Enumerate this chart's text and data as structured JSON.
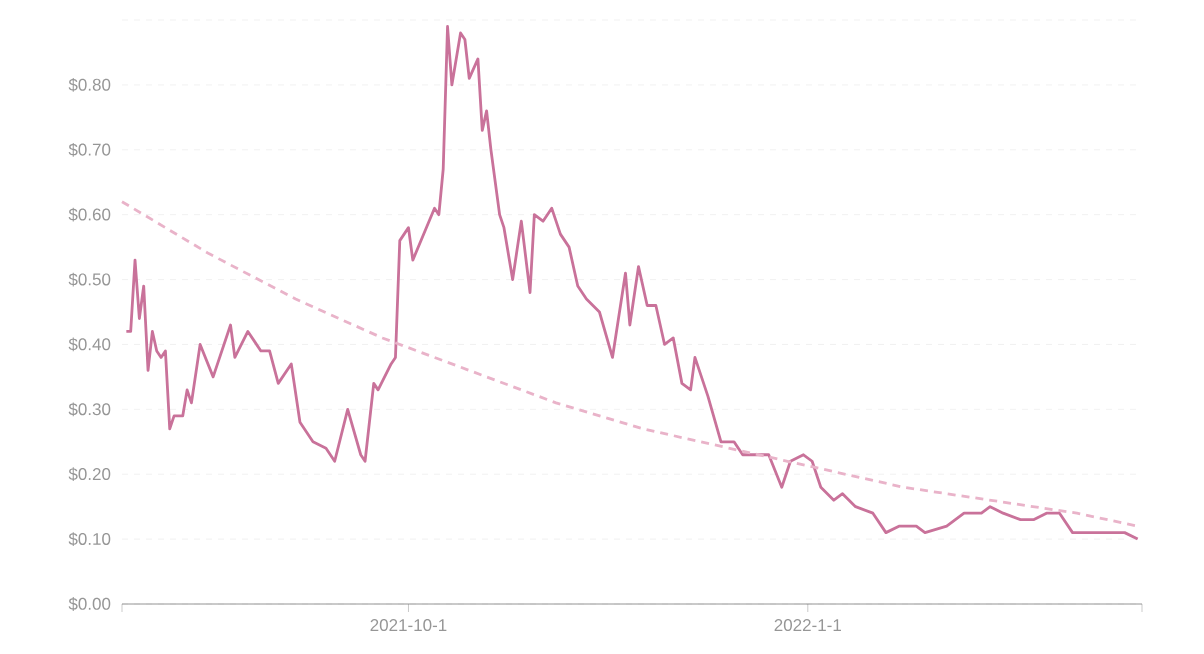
{
  "chart_data": {
    "type": "line",
    "xlim": [
      "2021-07-27",
      "2022-03-19"
    ],
    "xticks": [
      {
        "value": "2021-07-27",
        "label": null
      },
      {
        "value": "2021-10-01",
        "label": "2021-10-1"
      },
      {
        "value": "2022-01-01",
        "label": "2022-1-1"
      },
      {
        "value": "2022-03-19",
        "label": null
      }
    ],
    "ylim": [
      0,
      0.9
    ],
    "yticks": [
      {
        "value": 0,
        "label": "$0.00"
      },
      {
        "value": 0.1,
        "label": "$0.10"
      },
      {
        "value": 0.2,
        "label": "$0.20"
      },
      {
        "value": 0.3,
        "label": "$0.30"
      },
      {
        "value": 0.4,
        "label": "$0.40"
      },
      {
        "value": 0.5,
        "label": "$0.50"
      },
      {
        "value": 0.6,
        "label": "$0.60"
      },
      {
        "value": 0.7,
        "label": "$0.70"
      },
      {
        "value": 0.8,
        "label": "$0.80"
      },
      {
        "value": 0.9,
        "label": null
      }
    ],
    "grid": "y",
    "series": [
      {
        "color": "#c9729a",
        "line_style": "solid",
        "x": [
          "2021-07-28",
          "2021-07-29",
          "2021-07-30",
          "2021-07-31",
          "2021-08-01",
          "2021-08-02",
          "2021-08-03",
          "2021-08-04",
          "2021-08-05",
          "2021-08-06",
          "2021-08-07",
          "2021-08-08",
          "2021-08-10",
          "2021-08-11",
          "2021-08-12",
          "2021-08-14",
          "2021-08-17",
          "2021-08-21",
          "2021-08-22",
          "2021-08-25",
          "2021-08-28",
          "2021-08-30",
          "2021-09-01",
          "2021-09-04",
          "2021-09-06",
          "2021-09-09",
          "2021-09-12",
          "2021-09-14",
          "2021-09-17",
          "2021-09-20",
          "2021-09-21",
          "2021-09-23",
          "2021-09-24",
          "2021-09-27",
          "2021-09-28",
          "2021-09-29",
          "2021-10-01",
          "2021-10-02",
          "2021-10-07",
          "2021-10-08",
          "2021-10-09",
          "2021-10-10",
          "2021-10-11",
          "2021-10-13",
          "2021-10-14",
          "2021-10-15",
          "2021-10-17",
          "2021-10-18",
          "2021-10-19",
          "2021-10-20",
          "2021-10-22",
          "2021-10-23",
          "2021-10-25",
          "2021-10-27",
          "2021-10-29",
          "2021-10-30",
          "2021-11-01",
          "2021-11-03",
          "2021-11-05",
          "2021-11-07",
          "2021-11-09",
          "2021-11-11",
          "2021-11-14",
          "2021-11-17",
          "2021-11-20",
          "2021-11-21",
          "2021-11-23",
          "2021-11-25",
          "2021-11-27",
          "2021-11-29",
          "2021-12-01",
          "2021-12-03",
          "2021-12-05",
          "2021-12-06",
          "2021-12-09",
          "2021-12-12",
          "2021-12-15",
          "2021-12-17",
          "2021-12-20",
          "2021-12-23",
          "2021-12-26",
          "2021-12-28",
          "2021-12-31",
          "2022-01-02",
          "2022-01-04",
          "2022-01-07",
          "2022-01-09",
          "2022-01-12",
          "2022-01-16",
          "2022-01-19",
          "2022-01-22",
          "2022-01-26",
          "2022-01-28",
          "2022-02-02",
          "2022-02-06",
          "2022-02-10",
          "2022-02-12",
          "2022-02-15",
          "2022-02-19",
          "2022-02-22",
          "2022-02-25",
          "2022-02-28",
          "2022-03-03",
          "2022-03-07",
          "2022-03-11",
          "2022-03-15",
          "2022-03-18"
        ],
        "values": [
          0.42,
          0.42,
          0.53,
          0.44,
          0.49,
          0.36,
          0.42,
          0.39,
          0.38,
          0.39,
          0.27,
          0.29,
          0.29,
          0.33,
          0.31,
          0.4,
          0.35,
          0.43,
          0.38,
          0.42,
          0.39,
          0.39,
          0.34,
          0.37,
          0.28,
          0.25,
          0.24,
          0.22,
          0.3,
          0.23,
          0.22,
          0.34,
          0.33,
          0.37,
          0.38,
          0.56,
          0.58,
          0.53,
          0.61,
          0.6,
          0.67,
          0.89,
          0.8,
          0.88,
          0.87,
          0.81,
          0.84,
          0.73,
          0.76,
          0.7,
          0.6,
          0.58,
          0.5,
          0.59,
          0.48,
          0.6,
          0.59,
          0.61,
          0.57,
          0.55,
          0.49,
          0.47,
          0.45,
          0.38,
          0.51,
          0.43,
          0.52,
          0.46,
          0.46,
          0.4,
          0.41,
          0.34,
          0.33,
          0.38,
          0.32,
          0.25,
          0.25,
          0.23,
          0.23,
          0.23,
          0.18,
          0.22,
          0.23,
          0.22,
          0.18,
          0.16,
          0.17,
          0.15,
          0.14,
          0.11,
          0.12,
          0.12,
          0.11,
          0.12,
          0.14,
          0.14,
          0.15,
          0.14,
          0.13,
          0.13,
          0.14,
          0.14,
          0.11,
          0.11,
          0.11,
          0.11,
          0.1
        ]
      },
      {
        "color": "#e9b3c9",
        "line_style": "dashed",
        "x": [
          "2021-07-27",
          "2021-08-16",
          "2021-09-05",
          "2021-09-25",
          "2021-10-15",
          "2021-11-04",
          "2021-11-24",
          "2021-12-14",
          "2022-01-03",
          "2022-01-23",
          "2022-02-12",
          "2022-03-04",
          "2022-03-18"
        ],
        "values": [
          0.62,
          0.54,
          0.47,
          0.41,
          0.36,
          0.31,
          0.27,
          0.24,
          0.21,
          0.18,
          0.16,
          0.14,
          0.12
        ]
      }
    ]
  }
}
